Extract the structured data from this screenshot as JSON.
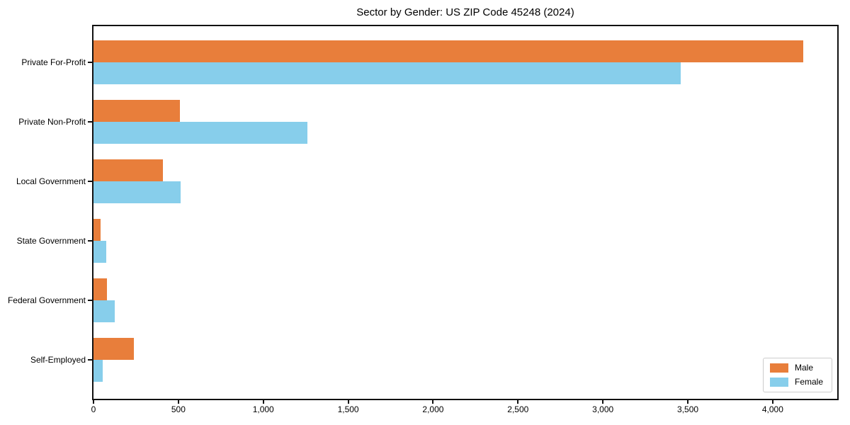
{
  "chart_data": {
    "type": "bar",
    "orientation": "horizontal",
    "title": "Sector by Gender: US ZIP Code 45248 (2024)",
    "categories": [
      "Private For-Profit",
      "Private Non-Profit",
      "Local Government",
      "State Government",
      "Federal Government",
      "Self-Employed"
    ],
    "series": [
      {
        "name": "Male",
        "color": "#e87e3b",
        "values": [
          4180,
          510,
          410,
          42,
          80,
          237
        ]
      },
      {
        "name": "Female",
        "color": "#87ceeb",
        "values": [
          3460,
          1260,
          512,
          75,
          125,
          55
        ]
      }
    ],
    "xlabel": "",
    "ylabel": "",
    "xlim": [
      0,
      4380
    ],
    "x_ticks": [
      0,
      500,
      1000,
      1500,
      2000,
      2500,
      3000,
      3500,
      4000
    ],
    "x_tick_labels": [
      "0",
      "500",
      "1,000",
      "1,500",
      "2,000",
      "2,500",
      "3,000",
      "3,500",
      "4,000"
    ],
    "grid": false,
    "legend_position": "lower right"
  }
}
